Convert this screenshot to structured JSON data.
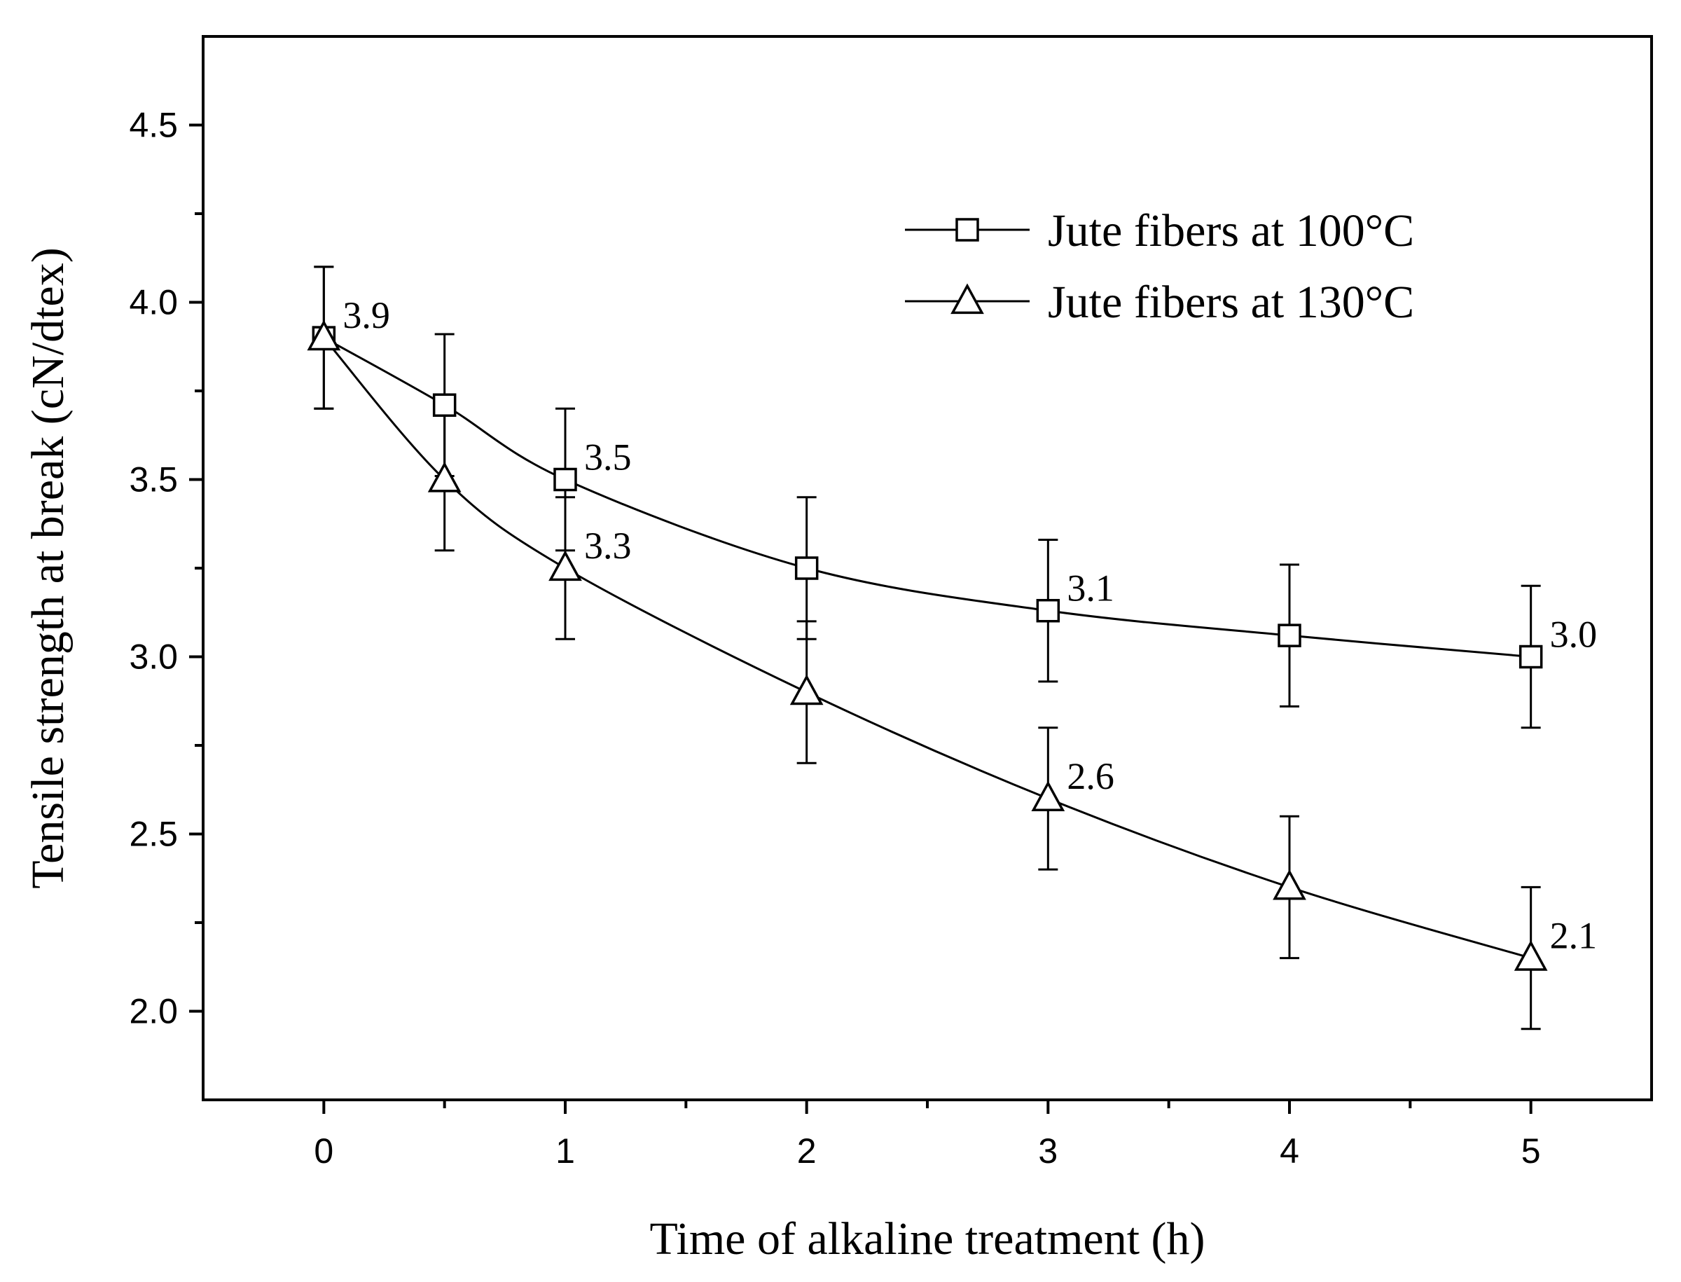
{
  "chart_data": {
    "type": "line",
    "title": "",
    "xlabel": "Time of alkaline treatment (h)",
    "ylabel": "Tensile strength at break (cN/dtex)",
    "xlim": [
      -0.5,
      5.5
    ],
    "ylim": [
      1.75,
      4.75
    ],
    "x_ticks": [
      0,
      1,
      2,
      3,
      4,
      5
    ],
    "x_tick_labels": [
      "0",
      "1",
      "2",
      "3",
      "4",
      "5"
    ],
    "x_minor_ticks": [
      0.5,
      1.5,
      2.5,
      3.5,
      4.5
    ],
    "y_ticks": [
      2.0,
      2.5,
      3.0,
      3.5,
      4.0,
      4.5
    ],
    "y_tick_labels": [
      "2.0",
      "2.5",
      "3.0",
      "3.5",
      "4.0",
      "4.5"
    ],
    "y_minor_ticks": [
      2.25,
      2.75,
      3.25,
      3.75,
      4.25
    ],
    "legend_position": "top-right",
    "grid": false,
    "colors": {
      "line": "#000000",
      "marker_fill": "#ffffff",
      "background": "#ffffff"
    },
    "series": [
      {
        "name": "Jute fibers at 100°C",
        "marker": "square",
        "x": [
          0,
          0.5,
          1,
          2,
          3,
          4,
          5
        ],
        "values": [
          3.9,
          3.71,
          3.5,
          3.25,
          3.13,
          3.06,
          3.0
        ],
        "error": [
          0.2,
          0.2,
          0.2,
          0.2,
          0.2,
          0.2,
          0.2
        ]
      },
      {
        "name": "Jute fibers at 130°C",
        "marker": "triangle",
        "x": [
          0,
          0.5,
          1,
          2,
          3,
          4,
          5
        ],
        "values": [
          3.9,
          3.5,
          3.25,
          2.9,
          2.6,
          2.35,
          2.15
        ],
        "error": [
          0.2,
          0.2,
          0.2,
          0.2,
          0.2,
          0.2,
          0.2
        ]
      }
    ],
    "annotations": [
      {
        "text": "3.9",
        "x": 0,
        "y": 3.9
      },
      {
        "text": "3.5",
        "x": 1,
        "y": 3.5
      },
      {
        "text": "3.3",
        "x": 1,
        "y": 3.25
      },
      {
        "text": "3.1",
        "x": 3,
        "y": 3.13
      },
      {
        "text": "2.6",
        "x": 3,
        "y": 2.6
      },
      {
        "text": "3.0",
        "x": 5,
        "y": 3.0
      },
      {
        "text": "2.1",
        "x": 5,
        "y": 2.15
      }
    ]
  }
}
